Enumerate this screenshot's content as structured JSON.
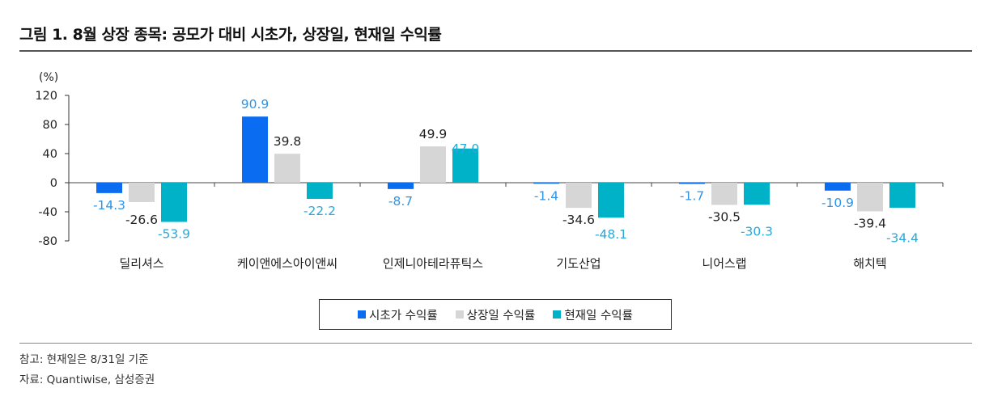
{
  "header": {
    "title": "그림 1. 8월 상장 종목: 공모가 대비 시초가, 상장일, 현재일 수익률"
  },
  "footer": {
    "note": "참고: 현재일은 8/31일 기준",
    "source": "자료: Quantiwise, 삼성증권"
  },
  "chart_data": {
    "type": "bar",
    "unit_label": "(%)",
    "categories": [
      "딜리셔스",
      "케이앤에스아이앤씨",
      "인제니아테라퓨틱스",
      "기도산업",
      "니어스랩",
      "해치텍"
    ],
    "series": [
      {
        "name": "시초가 수익률",
        "color": "#0a6cf0",
        "label_color": "#2e95e6",
        "values": [
          -14.3,
          90.9,
          -8.7,
          -1.4,
          -1.7,
          -10.9
        ]
      },
      {
        "name": "상장일 수익률",
        "color": "#d6d6d6",
        "label_color": "#222222",
        "values": [
          -26.6,
          39.8,
          49.9,
          -34.6,
          -30.5,
          -39.4
        ]
      },
      {
        "name": "현재일 수익률",
        "color": "#00b2c8",
        "label_color": "#2aa8d8",
        "values": [
          -53.9,
          -22.2,
          47.0,
          -48.1,
          -30.3,
          -34.4
        ]
      }
    ],
    "yticks": [
      "120",
      "80",
      "40",
      "0",
      "-40",
      "-80"
    ],
    "ylim": [
      -80,
      120
    ],
    "grid": false,
    "legend_position": "bottom"
  }
}
